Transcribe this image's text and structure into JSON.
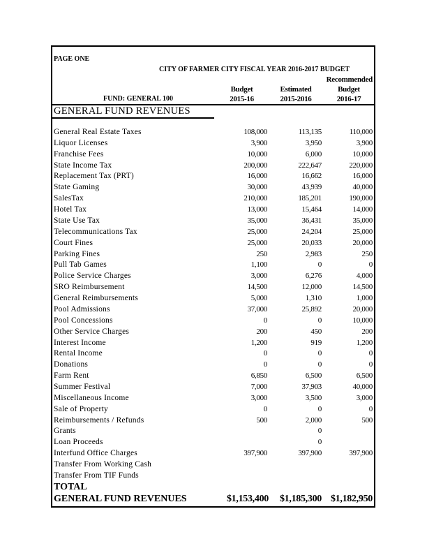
{
  "header": {
    "page": "PAGE ONE",
    "title": "CITY OF FARMER CITY FISCAL YEAR 2016-2017 BUDGET",
    "fund": "FUND: GENERAL  100",
    "columns": [
      {
        "line1": "",
        "line2": "Budget",
        "line3": "2015-16"
      },
      {
        "line1": "",
        "line2": "Estimated",
        "line3": "2015-2016"
      },
      {
        "line1": "Recommended",
        "line2": "Budget",
        "line3": "2016-17"
      }
    ]
  },
  "section_title": "GENERAL FUND REVENUES",
  "rows": [
    {
      "label": "General Real Estate Taxes",
      "budget": "108,000",
      "estimated": "113,135",
      "recommended": "110,000"
    },
    {
      "label": "Liquor Licenses",
      "budget": "3,900",
      "estimated": "3,950",
      "recommended": "3,900"
    },
    {
      "label": "Franchise Fees",
      "budget": "10,000",
      "estimated": "6,000",
      "recommended": "10,000"
    },
    {
      "label": "State Income Tax",
      "budget": "200,000",
      "estimated": "222,647",
      "recommended": "220,000"
    },
    {
      "label": "Replacement Tax (PRT)",
      "budget": "16,000",
      "estimated": "16,662",
      "recommended": "16,000"
    },
    {
      "label": "State Gaming",
      "budget": "30,000",
      "estimated": "43,939",
      "recommended": "40,000"
    },
    {
      "label": "SalesTax",
      "budget": "210,000",
      "estimated": "185,201",
      "recommended": "190,000"
    },
    {
      "label": "Hotel Tax",
      "budget": "13,000",
      "estimated": "15,464",
      "recommended": "14,000"
    },
    {
      "label": "State Use Tax",
      "budget": "35,000",
      "estimated": "36,431",
      "recommended": "35,000"
    },
    {
      "label": "Telecommunications Tax",
      "budget": "25,000",
      "estimated": "24,204",
      "recommended": "25,000"
    },
    {
      "label": "Court Fines",
      "budget": "25,000",
      "estimated": "20,033",
      "recommended": "20,000"
    },
    {
      "label": "Parking Fines",
      "budget": "250",
      "estimated": "2,983",
      "recommended": "250"
    },
    {
      "label": "Pull Tab Games",
      "budget": "1,100",
      "estimated": "0",
      "recommended": "0"
    },
    {
      "label": "Police Service Charges",
      "budget": "3,000",
      "estimated": "6,276",
      "recommended": "4,000"
    },
    {
      "label": "SRO Reimbursement",
      "budget": "14,500",
      "estimated": "12,000",
      "recommended": "14,500"
    },
    {
      "label": "General Reimbursements",
      "budget": "5,000",
      "estimated": "1,310",
      "recommended": "1,000"
    },
    {
      "label": "Pool Admissions",
      "budget": "37,000",
      "estimated": "25,892",
      "recommended": "20,000"
    },
    {
      "label": "Pool Concessions",
      "budget": "0",
      "estimated": "0",
      "recommended": "10,000"
    },
    {
      "label": "Other Service Charges",
      "budget": "200",
      "estimated": "450",
      "recommended": "200"
    },
    {
      "label": "Interest Income",
      "budget": "1,200",
      "estimated": "919",
      "recommended": "1,200"
    },
    {
      "label": "Rental Income",
      "budget": "0",
      "estimated": "0",
      "recommended": "0"
    },
    {
      "label": "Donations",
      "budget": "0",
      "estimated": "0",
      "recommended": "0"
    },
    {
      "label": "Farm Rent",
      "budget": "6,850",
      "estimated": "6,500",
      "recommended": "6,500"
    },
    {
      "label": "Summer Festival",
      "budget": "7,000",
      "estimated": "37,903",
      "recommended": "40,000"
    },
    {
      "label": "Miscellaneous Income",
      "budget": "3,000",
      "estimated": "3,500",
      "recommended": "3,000"
    },
    {
      "label": "Sale of Property",
      "budget": "0",
      "estimated": "0",
      "recommended": "0"
    },
    {
      "label": "Reimbursements / Refunds",
      "budget": "500",
      "estimated": "2,000",
      "recommended": "500"
    },
    {
      "label": "Grants",
      "budget": "",
      "estimated": "0",
      "recommended": ""
    },
    {
      "label": "Loan Proceeds",
      "budget": "",
      "estimated": "0",
      "recommended": ""
    },
    {
      "label": "Interfund Office Charges",
      "budget": "397,900",
      "estimated": "397,900",
      "recommended": "397,900"
    },
    {
      "label": "Transfer From Working Cash",
      "budget": "",
      "estimated": "",
      "recommended": ""
    },
    {
      "label": "Transfer From TIF Funds",
      "budget": "",
      "estimated": "",
      "recommended": ""
    }
  ],
  "total": {
    "label1": "TOTAL",
    "label2": "GENERAL FUND REVENUES",
    "budget": "$1,153,400",
    "estimated": "$1,185,300",
    "recommended": "$1,182,950"
  }
}
